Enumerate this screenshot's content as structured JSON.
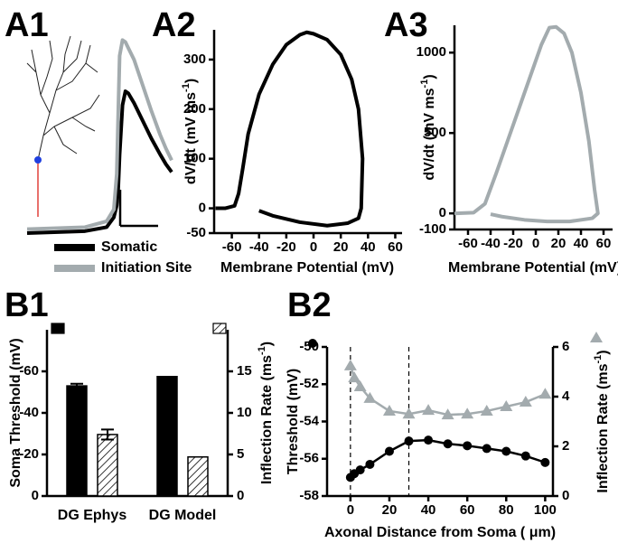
{
  "chart_data": [
    {
      "type": "line",
      "label": "A1",
      "legend": "below",
      "x": [
        0,
        40,
        55,
        60,
        62,
        63,
        64,
        66,
        68,
        70,
        74,
        80,
        86,
        92,
        96,
        100
      ],
      "xlim": [
        0,
        100
      ],
      "ylim": [
        0,
        100
      ],
      "series": [
        {
          "name": "Somatic",
          "color": "#000000",
          "values": [
            0,
            1,
            3,
            8,
            14,
            22,
            40,
            65,
            72,
            71,
            66,
            57,
            48,
            40,
            35,
            31
          ]
        },
        {
          "name": "Initiation Site",
          "color": "#a3abae",
          "values": [
            2,
            3,
            6,
            12,
            30,
            60,
            90,
            98,
            97,
            94,
            88,
            75,
            62,
            50,
            43,
            37
          ]
        }
      ]
    },
    {
      "type": "line",
      "label": "A2",
      "x": [
        -72,
        -65,
        -58,
        -55,
        -52,
        -48,
        -40,
        -30,
        -20,
        -10,
        -5,
        0,
        10,
        20,
        28,
        33,
        36,
        35,
        33,
        25,
        10,
        -10,
        -30,
        -40
      ],
      "series": [
        {
          "color": "#000000",
          "values": [
            0,
            0,
            5,
            30,
            80,
            150,
            230,
            290,
            330,
            350,
            355,
            352,
            340,
            310,
            260,
            200,
            100,
            0,
            -20,
            -30,
            -35,
            -28,
            -15,
            -5
          ]
        }
      ],
      "xlim": [
        -73,
        65
      ],
      "ylim": [
        -50,
        360
      ],
      "xticks": [
        -60,
        -40,
        -20,
        0,
        20,
        40,
        60
      ],
      "yticks": [
        -50,
        0,
        100,
        200,
        300
      ],
      "xlabel": "Membrane Potential (mV)",
      "ylabel": [
        "dV/dt (mV ms",
        "-1",
        ")"
      ]
    },
    {
      "type": "line",
      "label": "A3",
      "x": [
        -72,
        -55,
        -45,
        -35,
        -25,
        -15,
        -5,
        5,
        12,
        18,
        25,
        32,
        40,
        47,
        52,
        55,
        50,
        30,
        10,
        -10,
        -30,
        -40
      ],
      "series": [
        {
          "color": "#a3abae",
          "values": [
            0,
            5,
            60,
            250,
            450,
            650,
            850,
            1050,
            1155,
            1160,
            1120,
            1000,
            750,
            450,
            150,
            0,
            -30,
            -50,
            -50,
            -40,
            -20,
            -5
          ]
        }
      ],
      "xlim": [
        -72,
        68
      ],
      "ylim": [
        -100,
        1170
      ],
      "xticks": [
        -60,
        -40,
        -20,
        0,
        20,
        40,
        60
      ],
      "yticks": [
        -100,
        0,
        500,
        1000
      ],
      "xlabel": "Membrane Potential (mV)",
      "ylabel": [
        "dV/dt (mV ms",
        "-1",
        ")"
      ]
    },
    {
      "type": "bar",
      "label": "B1",
      "legend": "axis-ends",
      "categories": [
        "DG Ephys",
        "DG Model"
      ],
      "series": [
        {
          "color": "#000000",
          "values": [
            -53,
            -57.5
          ],
          "errors": [
            1,
            null
          ]
        },
        {
          "color": "#ffffff",
          "hatch": true,
          "axis": "y2",
          "values": [
            7.4,
            4.7
          ],
          "errors": [
            0.6,
            null
          ]
        }
      ],
      "ylim": [
        0,
        -80
      ],
      "yticks": [
        0,
        -20,
        -40,
        -60
      ],
      "y2lim": [
        0,
        20
      ],
      "y2ticks": [
        0,
        5,
        10,
        15
      ],
      "ylabel": [
        "Soma Threshold (mV)"
      ],
      "y2label": [
        "Inflection Rate (ms",
        "-1",
        ")"
      ]
    },
    {
      "type": "line",
      "label": "B2",
      "legend": "axis-ends",
      "x": [
        0,
        2,
        5,
        10,
        20,
        30,
        40,
        50,
        60,
        70,
        80,
        90,
        100
      ],
      "series": [
        {
          "color": "#000000",
          "marker": "circle",
          "values": [
            -57.0,
            -56.8,
            -56.6,
            -56.3,
            -55.6,
            -55.05,
            -55.0,
            -55.2,
            -55.3,
            -55.45,
            -55.6,
            -55.85,
            -56.2
          ]
        },
        {
          "color": "#a3abae",
          "marker": "triangle",
          "axis": "y2",
          "values": [
            5.24,
            4.76,
            4.4,
            3.93,
            3.42,
            3.3,
            3.45,
            3.27,
            3.3,
            3.42,
            3.6,
            3.78,
            4.1
          ]
        }
      ],
      "xlim": [
        -12,
        104
      ],
      "ylim": [
        -58,
        -50
      ],
      "y2lim": [
        0,
        6
      ],
      "xticks": [
        0,
        20,
        40,
        60,
        80,
        100
      ],
      "yticks": [
        -58,
        -56,
        -54,
        -52,
        -50
      ],
      "y2ticks": [
        0,
        2,
        4,
        6
      ],
      "vlines": [
        0,
        30
      ],
      "xlabel": "Axonal Distance from Soma ( μm)",
      "ylabel": [
        "Threshold (mV)"
      ],
      "y2label": [
        "Inflection Rate (ms",
        "-1",
        ")"
      ]
    }
  ]
}
